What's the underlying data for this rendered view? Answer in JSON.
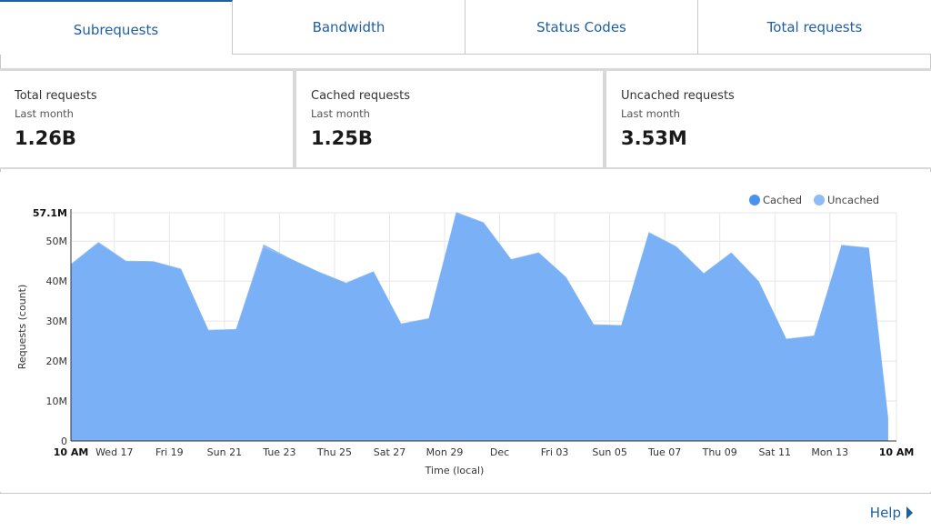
{
  "tabs": [
    {
      "label": "Subrequests",
      "active": true
    },
    {
      "label": "Bandwidth",
      "active": false
    },
    {
      "label": "Status Codes",
      "active": false
    },
    {
      "label": "Total requests",
      "active": false
    }
  ],
  "stats": [
    {
      "label": "Total requests",
      "period": "Last month",
      "value": "1.26B"
    },
    {
      "label": "Cached requests",
      "period": "Last month",
      "value": "1.25B"
    },
    {
      "label": "Uncached requests",
      "period": "Last month",
      "value": "3.53M"
    }
  ],
  "help": {
    "label": "Help",
    "icon": "caret-right-icon"
  },
  "colors": {
    "accent": "#1f5fa6",
    "cached": "#4b92ef",
    "uncached": "#8fbcf5",
    "area": "#7ab0f6"
  },
  "chart_data": {
    "type": "area",
    "title": "",
    "xlabel": "Time (local)",
    "ylabel": "Requests (count)",
    "ylim": [
      0,
      57.1
    ],
    "y_unit": "M",
    "ytick_labels": [
      "0",
      "10M",
      "20M",
      "30M",
      "40M",
      "50M",
      "57.1M"
    ],
    "ytick_values": [
      0,
      10,
      20,
      30,
      40,
      50,
      57.1
    ],
    "xtick_labels": [
      "10 AM",
      "Wed 17",
      "Fri 19",
      "Sun 21",
      "Tue 23",
      "Thu 25",
      "Sat 27",
      "Mon 29",
      "Dec",
      "Fri 03",
      "Sun 05",
      "Tue 07",
      "Thu 09",
      "Sat 11",
      "Mon 13",
      "10 AM"
    ],
    "xtick_days": [
      0,
      1.58,
      3.58,
      5.58,
      7.58,
      9.58,
      11.58,
      13.58,
      15.58,
      17.58,
      19.58,
      21.58,
      23.58,
      25.58,
      27.58,
      30
    ],
    "bold_xticks": [
      0,
      15
    ],
    "legend": "top-right",
    "grid": true,
    "x_days": [
      0,
      1,
      2,
      3,
      4,
      5,
      6,
      7,
      8,
      9,
      10,
      11,
      12,
      13,
      14,
      15,
      16,
      17,
      18,
      19,
      20,
      21,
      22,
      23,
      24,
      25,
      26,
      27,
      28,
      29,
      29.7
    ],
    "series": [
      {
        "name": "Cached",
        "values": [
          44.2,
          49.6,
          45.0,
          44.9,
          43.0,
          27.7,
          27.9,
          48.4,
          45.5,
          42.3,
          39.5,
          42.4,
          29.3,
          30.6,
          57.1,
          54.6,
          45.4,
          47.1,
          40.9,
          29.1,
          28.9,
          52.1,
          48.6,
          41.9,
          47.1,
          39.9,
          25.5,
          26.3,
          49.0,
          48.3,
          5.8
        ]
      },
      {
        "name": "Uncached",
        "values": [
          0.1,
          0.2,
          0.1,
          0.1,
          0.1,
          0.1,
          0.1,
          0.8,
          0.1,
          0.1,
          0.1,
          0.1,
          0.1,
          0.1,
          0.2,
          0.1,
          0.1,
          0.1,
          0.1,
          0.1,
          0.1,
          0.2,
          0.1,
          0.1,
          0.1,
          0.1,
          0.1,
          0.1,
          0.1,
          0.1,
          0.1
        ]
      }
    ]
  }
}
